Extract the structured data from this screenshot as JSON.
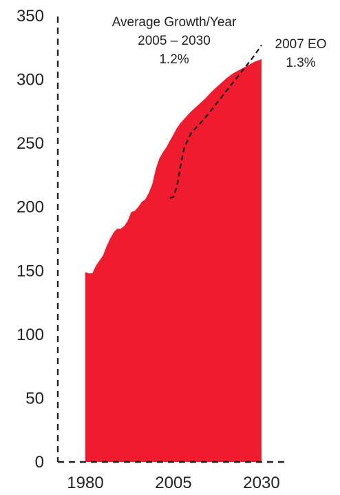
{
  "chart_data": {
    "type": "area",
    "title": "",
    "xlabel": "",
    "ylabel": "",
    "xlim": [
      1980,
      2030
    ],
    "ylim": [
      0,
      350
    ],
    "x_ticks": [
      "1980",
      "2005",
      "2030"
    ],
    "y_ticks": [
      "0",
      "50",
      "100",
      "150",
      "200",
      "250",
      "300",
      "350"
    ],
    "grid": false,
    "colors": {
      "area": "#ee1c2e",
      "projection": "#111111",
      "axis": "#222222",
      "text": "#222222"
    },
    "series": [
      {
        "style": "filled-area",
        "x": [
          1980,
          1981,
          1982,
          1983,
          1984,
          1985,
          1986,
          1987,
          1988,
          1989,
          1990,
          1991,
          1992,
          1993,
          1994,
          1995,
          1996,
          1997,
          1998,
          1999,
          2000,
          2001,
          2002,
          2003,
          2004,
          2005,
          2006,
          2007,
          2008,
          2009,
          2010,
          2012,
          2014,
          2016,
          2018,
          2020,
          2022,
          2024,
          2026,
          2028,
          2030
        ],
        "values": [
          149,
          148,
          148,
          154,
          158,
          162,
          169,
          175,
          180,
          183,
          183,
          185,
          189,
          196,
          197,
          200,
          204,
          206,
          211,
          218,
          230,
          238,
          243,
          247,
          252,
          257,
          262,
          266,
          269,
          272,
          275,
          280,
          285,
          291,
          296,
          301,
          305,
          308,
          311,
          314,
          316
        ]
      },
      {
        "style": "dashed-line",
        "x": [
          2004,
          2005,
          2006,
          2007,
          2008,
          2010,
          2012,
          2014,
          2016,
          2018,
          2020,
          2022,
          2024,
          2026,
          2028,
          2030
        ],
        "values": [
          207,
          208,
          216,
          232,
          246,
          258,
          264,
          270,
          277,
          284,
          291,
          298,
          305,
          312,
          319,
          327
        ]
      }
    ],
    "annotations": {
      "headline": "Average Growth/Year",
      "period": "2005 – 2030",
      "base_rate": "1.2%",
      "eo_label": "2007 EO",
      "eo_rate": "1.3%"
    }
  }
}
